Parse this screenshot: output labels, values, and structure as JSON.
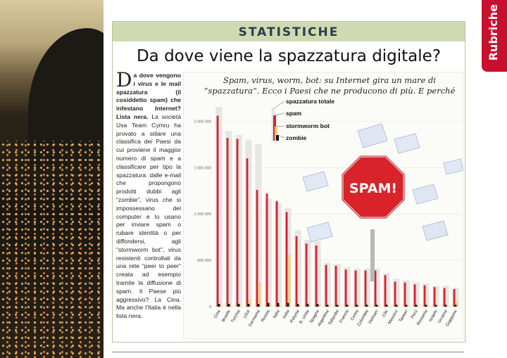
{
  "side_tab": "Rubriche",
  "section": "STATISTICHE",
  "title": "Da dove viene la spazzatura digitale?",
  "article": {
    "dropcap": "D",
    "intro": "a dove vengono i virus e le mail spazzatura (il cosiddetto spam) che infestano Internet?",
    "heading": "Lista nera.",
    "body": "La società Usa Team Cymru ha provato a stilare una classifica dei Paesi da cui proviene il maggior numero di spam e a classificare per tipo la spazzatura: dalle e-mail che propongono prodotti dubbi agli “zombie”, virus che si impossessano del computer e lo usano per inviare spam o rubare identità o per diffondersi, agli “stormworm bot”, virus resistenti controllati da una rete “peer to peer” creata ad esempio tramite la diffusione di spam. Il Paese più aggressivo? La Cina. Ma anche l’Italia è nella lista nera."
  },
  "chart_data": {
    "type": "bar",
    "subtitle_line1": "Spam, virus, worm, bot: su Internet gira un mare di",
    "subtitle_line2": "“spazzatura”. Ecco i Paesi che ne producono di più. E perché",
    "ylim": [
      0,
      2200000
    ],
    "yticks": [
      "2.000.000",
      "1.500.000",
      "1.000.000",
      "500.000",
      "0"
    ],
    "ytick_values": [
      2000000,
      1500000,
      1000000,
      500000,
      0
    ],
    "legend": [
      "spazzatura totale",
      "spam",
      "stormworm bot",
      "zombie"
    ],
    "categories": [
      "Cina",
      "Brasile",
      "Turchia",
      "USA",
      "Germania",
      "Russia",
      "Italia",
      "India",
      "Polonia",
      "R. Unita",
      "Spagna",
      "Argentina",
      "Tailandia",
      "Francia",
      "Corea",
      "Colombia",
      "Vietnam",
      "Cile",
      "Messico",
      "Taiwan",
      "Perù",
      "Romania",
      "Israele",
      "Ucraina",
      "Giappone"
    ],
    "series": [
      {
        "name": "spazzatura totale",
        "values": [
          2150000,
          1890000,
          1850000,
          1800000,
          1750000,
          1160000,
          1120000,
          1060000,
          820000,
          720000,
          700000,
          470000,
          460000,
          420000,
          410000,
          410000,
          410000,
          360000,
          300000,
          280000,
          260000,
          250000,
          220000,
          220000,
          200000
        ]
      },
      {
        "name": "spam",
        "values": [
          2060000,
          1820000,
          1810000,
          1600000,
          1260000,
          1220000,
          1140000,
          1020000,
          760000,
          680000,
          660000,
          450000,
          440000,
          400000,
          390000,
          390000,
          390000,
          340000,
          270000,
          260000,
          240000,
          230000,
          210000,
          200000,
          190000
        ]
      },
      {
        "name": "stormworm bot",
        "values": [
          20000,
          15000,
          15000,
          80000,
          260000,
          40000,
          20000,
          560000,
          20000,
          15000,
          20000,
          10000,
          10000,
          15000,
          10000,
          10000,
          15000,
          10000,
          10000,
          10000,
          10000,
          10000,
          5000,
          10000,
          60000
        ]
      },
      {
        "name": "zombie",
        "values": [
          30000,
          30000,
          30000,
          30000,
          30000,
          40000,
          40000,
          40000,
          30000,
          30000,
          30000,
          20000,
          20000,
          20000,
          20000,
          20000,
          20000,
          20000,
          20000,
          20000,
          20000,
          20000,
          20000,
          20000,
          20000
        ]
      }
    ],
    "stop_sign_label": "SPAM!",
    "colors": {
      "total": "#e6e6e6",
      "spam": "#d8232a",
      "stormworm": "#f0d46a",
      "zombie": "#111111",
      "stop": "#d8232a"
    }
  }
}
